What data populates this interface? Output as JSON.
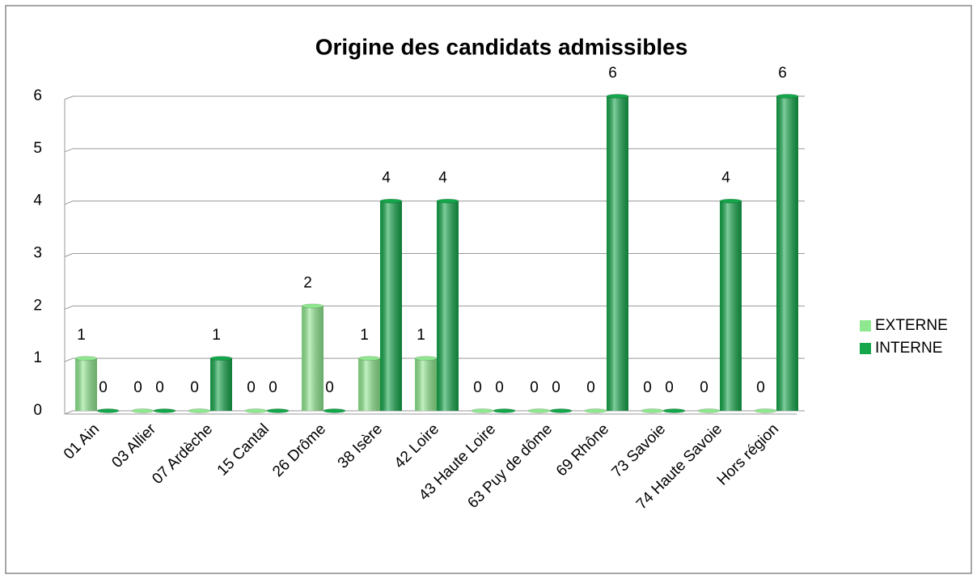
{
  "chart_data": {
    "type": "bar",
    "title": "Origine des candidats admissibles",
    "categories": [
      "01 Ain",
      "03 Allier",
      "07 Ardèche",
      "15 Cantal",
      "26 Drôme",
      "38 Isère",
      "42 Loire",
      "43 Haute Loire",
      "63 Puy de dôme",
      "69 Rhône",
      "73 Savoie",
      "74 Haute Savoie",
      "Hors région"
    ],
    "series": [
      {
        "name": "EXTERNE",
        "color": "#8fe88f",
        "values": [
          1,
          0,
          0,
          0,
          2,
          1,
          1,
          0,
          0,
          0,
          0,
          0,
          0
        ]
      },
      {
        "name": "INTERNE",
        "color": "#14a64a",
        "values": [
          0,
          0,
          1,
          0,
          0,
          4,
          4,
          0,
          0,
          6,
          0,
          4,
          6
        ]
      }
    ],
    "ylim": [
      0,
      6
    ],
    "yticks": [
      0,
      1,
      2,
      3,
      4,
      5,
      6
    ],
    "grid": true,
    "legend": "right"
  }
}
